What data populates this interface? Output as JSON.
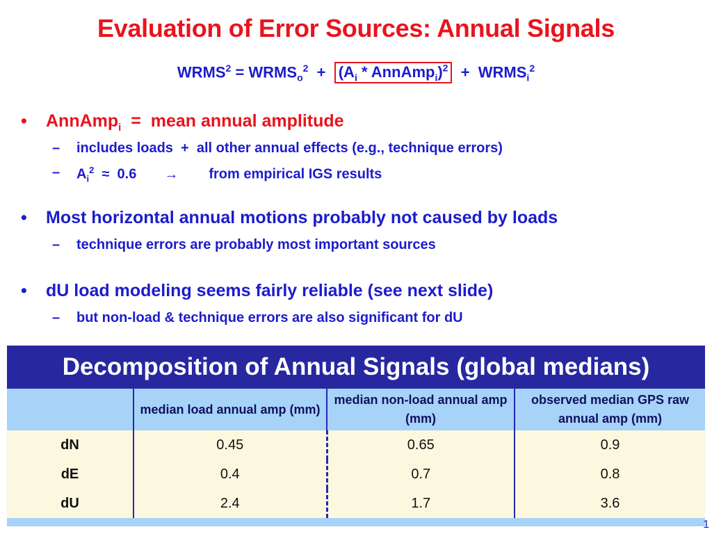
{
  "title": "Evaluation of Error Sources:  Annual Signals",
  "formula": {
    "p1": "WRMS",
    "p1_sup": "2",
    "p2": " = WRMS",
    "p2_sub": "o",
    "p2_sup": "2",
    "p3": "  +  ",
    "box_a": "(A",
    "box_a_sub": "i",
    "box_b": " * AnnAmp",
    "box_b_sub": "i",
    "box_c": ")",
    "box_c_sup": "2",
    "p4": "  +  WRMS",
    "p4_sub": "i",
    "p4_sup": "2"
  },
  "bullets": [
    {
      "dot": "•",
      "text_a": "AnnAmp",
      "text_a_sub": "i",
      "text_b": "  =  mean annual amplitude",
      "subs": [
        {
          "dash": "–",
          "text": "includes loads  +  all other annual effects (e.g., technique errors)"
        },
        {
          "dash": "–",
          "text_a": "A",
          "text_a_sub": "i",
          "text_a_sup": "2",
          "text_b": "  ≈  0.6",
          "arrow": "→",
          "text_c": "from empirical IGS results"
        }
      ]
    },
    {
      "dot": "•",
      "text": "Most horizontal annual motions probably not caused by loads",
      "subs": [
        {
          "dash": "–",
          "text": "technique errors are probably most important sources"
        }
      ]
    },
    {
      "dot": "•",
      "text": "dU load modeling seems fairly reliable (see next slide)",
      "subs": [
        {
          "dash": "–",
          "text": "but non-load & technique errors are also significant for dU"
        }
      ]
    }
  ],
  "table": {
    "title": "Decomposition of Annual Signals (global medians)",
    "columns": [
      "",
      "median load annual amp (mm)",
      "median non-load annual amp (mm)",
      "observed median GPS raw annual amp (mm)"
    ],
    "rows": [
      [
        "dN",
        "0.45",
        "0.65",
        "0.9"
      ],
      [
        "dE",
        "0.4",
        "0.7",
        "0.8"
      ],
      [
        "dU",
        "2.4",
        "1.7",
        "3.6"
      ]
    ]
  },
  "page_number": "1",
  "colors": {
    "title_red": "#e8141e",
    "text_blue": "#1c1ccc",
    "table_header": "#2727a0",
    "column_header": "#a6d3f7",
    "row_bg": "#fbf8df"
  }
}
